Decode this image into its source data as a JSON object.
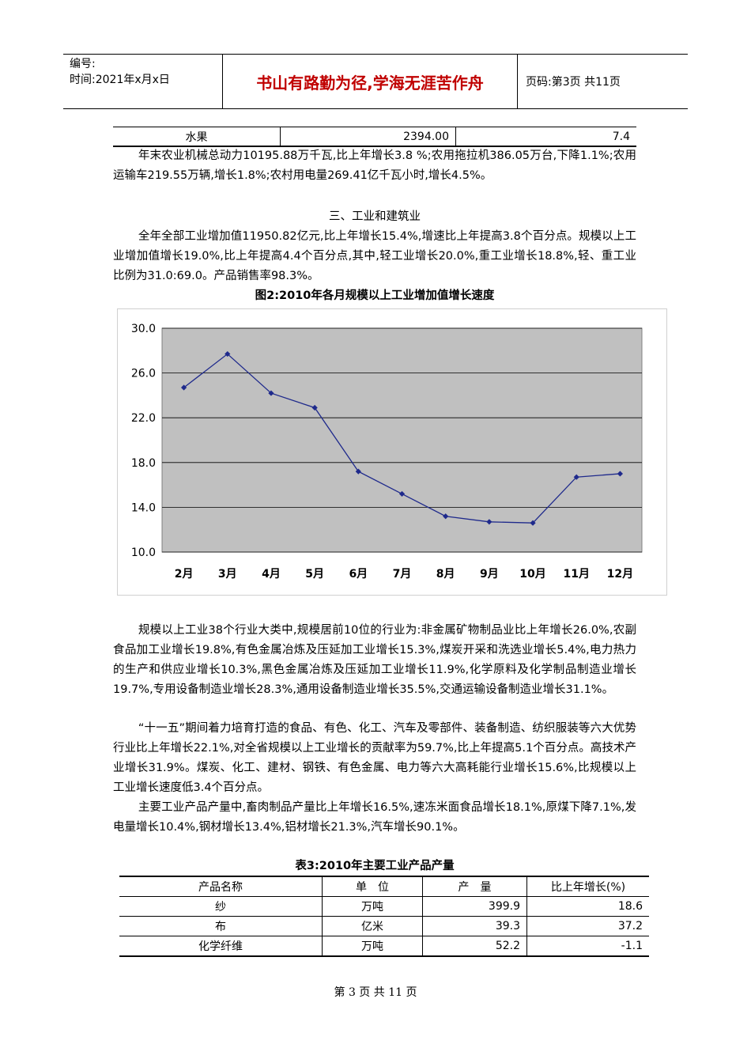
{
  "header": {
    "number_label": "编号:",
    "time_label": "时间:2021年x月x日",
    "motto": "书山有路勤为径,学海无涯苦作舟",
    "page_label": "页码:第3页 共11页"
  },
  "top_table": {
    "name": "水果",
    "value": "2394.00",
    "growth": "7.4"
  },
  "paragraphs": {
    "machinery": "年末农业机械总动力10195.88万千瓦,比上年增长3.8 %;农用拖拉机386.05万台,下降1.1%;农用运输车219.55万辆,增长1.8%;农村用电量269.41亿千瓦小时,增长4.5%。",
    "section_title": "三、工业和建筑业",
    "industry": "全年全部工业增加值11950.82亿元,比上年增长15.4%,增速比上年提高3.8个百分点。规模以上工业增加值增长19.0%,比上年提高4.4个百分点,其中,轻工业增长20.0%,重工业增长18.8%,轻、重工业比例为31.0:69.0。产品销售率98.3%。",
    "chart_caption": "图2:2010年各月规模以上工业增加值增长速度",
    "sectors": "规模以上工业38个行业大类中,规模居前10位的行业为:非金属矿物制品业比上年增长26.0%,农副食品加工业增长19.8%,有色金属冶炼及压延加工业增长15.3%,煤炭开采和洗选业增长5.4%,电力热力的生产和供应业增长10.3%,黑色金属冶炼及压延加工业增长11.9%,化学原料及化学制品制造业增长19.7%,专用设备制造业增长28.3%,通用设备制造业增长35.5%,交通运输设备制造业增长31.1%。",
    "five_year": "“十一五”期间着力培育打造的食品、有色、化工、汽车及零部件、装备制造、纺织服装等六大优势行业比上年增长22.1%,对全省规模以上工业增长的贡献率为59.7%,比上年提高5.1个百分点。高技术产业增长31.9%。煤炭、化工、建材、钢铁、有色金属、电力等六大高耗能行业增长15.6%,比规模以上工业增长速度低3.4个百分点。",
    "products": "主要工业产品产量中,畜肉制品产量比上年增长16.5%,速冻米面食品增长18.1%,原煤下降7.1%,发电量增长10.4%,钢材增长13.4%,铝材增长21.3%,汽车增长90.1%。",
    "table_caption": "表3:2010年主要工业产品产量"
  },
  "chart_data": {
    "type": "line",
    "categories": [
      "2月",
      "3月",
      "4月",
      "5月",
      "6月",
      "7月",
      "8月",
      "9月",
      "10月",
      "11月",
      "12月"
    ],
    "values": [
      24.7,
      27.7,
      24.2,
      22.9,
      17.2,
      15.2,
      13.2,
      12.7,
      12.6,
      16.7,
      17.0
    ],
    "ylim": [
      10.0,
      30.0
    ],
    "yticks": [
      "10.0",
      "14.0",
      "18.0",
      "22.0",
      "26.0",
      "30.0"
    ],
    "grid": true,
    "colors": {
      "plot_bg": "#c0c0c0",
      "line": "#1f2a8c"
    }
  },
  "product_table": {
    "headers": [
      "产品名称",
      "单　位",
      "产　量",
      "比上年增长(%)"
    ],
    "rows": [
      [
        "纱",
        "万吨",
        "399.9",
        "18.6"
      ],
      [
        "布",
        "亿米",
        "39.3",
        "37.2"
      ],
      [
        "化学纤维",
        "万吨",
        "52.2",
        "-1.1"
      ]
    ]
  },
  "footer": "第 3 页 共 11 页"
}
